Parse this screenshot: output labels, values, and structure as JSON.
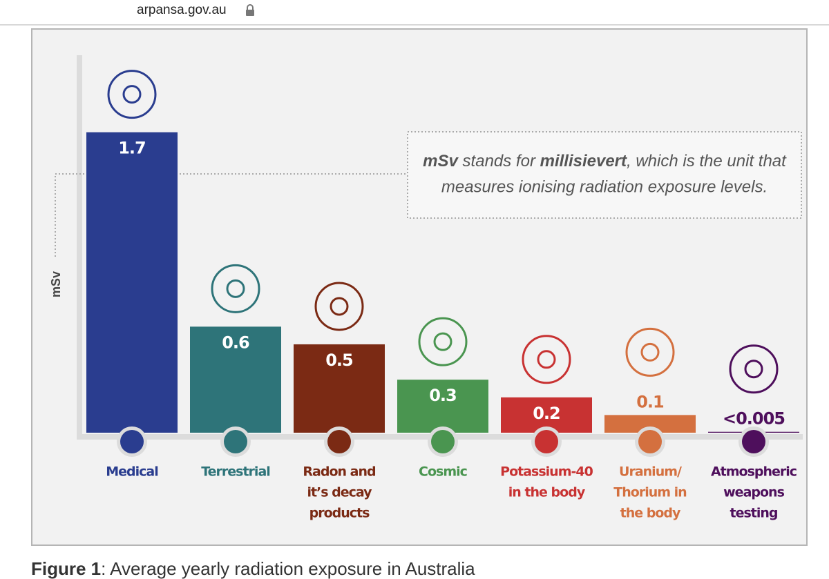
{
  "url": "arpansa.gov.au",
  "chart_data": {
    "type": "bar",
    "categories": [
      [
        "Medical"
      ],
      [
        "Terrestrial"
      ],
      [
        "Radon and",
        "it’s decay",
        "products"
      ],
      [
        "Cosmic"
      ],
      [
        "Potassium-40",
        "in the body"
      ],
      [
        "Uranium/",
        "Thorium in",
        "the body"
      ],
      [
        "Atmospheric",
        "weapons",
        "testing"
      ]
    ],
    "values": [
      1.7,
      0.6,
      0.5,
      0.3,
      0.2,
      0.1,
      0.005
    ],
    "value_labels": [
      "1.7",
      "0.6",
      "0.5",
      "0.3",
      "0.2",
      "0.1",
      "<0.005"
    ],
    "colors": [
      "#2a3d8f",
      "#2e7479",
      "#7b2a14",
      "#4a9550",
      "#c83232",
      "#d4703f",
      "#4e0f5c"
    ],
    "y_label": "mSv",
    "ylim": [
      0,
      1.8
    ],
    "annotation": [
      "mSv",
      "stands for",
      "millisievert",
      ", which is the unit that",
      "measures ionising radiation exposure levels."
    ]
  },
  "caption": {
    "label": "Figure 1",
    "text": ": Average yearly radiation exposure in Australia"
  }
}
